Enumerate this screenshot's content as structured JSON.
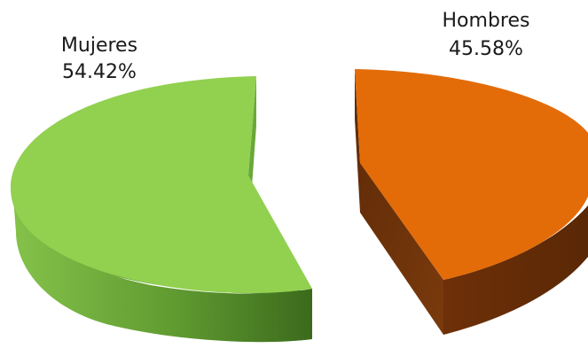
{
  "chart_data": {
    "type": "pie",
    "title": "",
    "slices": [
      {
        "label": "Mujeres",
        "value": 54.42,
        "value_label": "54.42%",
        "color": "#92d050"
      },
      {
        "label": "Hombres",
        "value": 45.58,
        "value_label": "45.58%",
        "color": "#e36c09"
      }
    ],
    "exploded": true,
    "three_d": true,
    "legend": "none"
  }
}
